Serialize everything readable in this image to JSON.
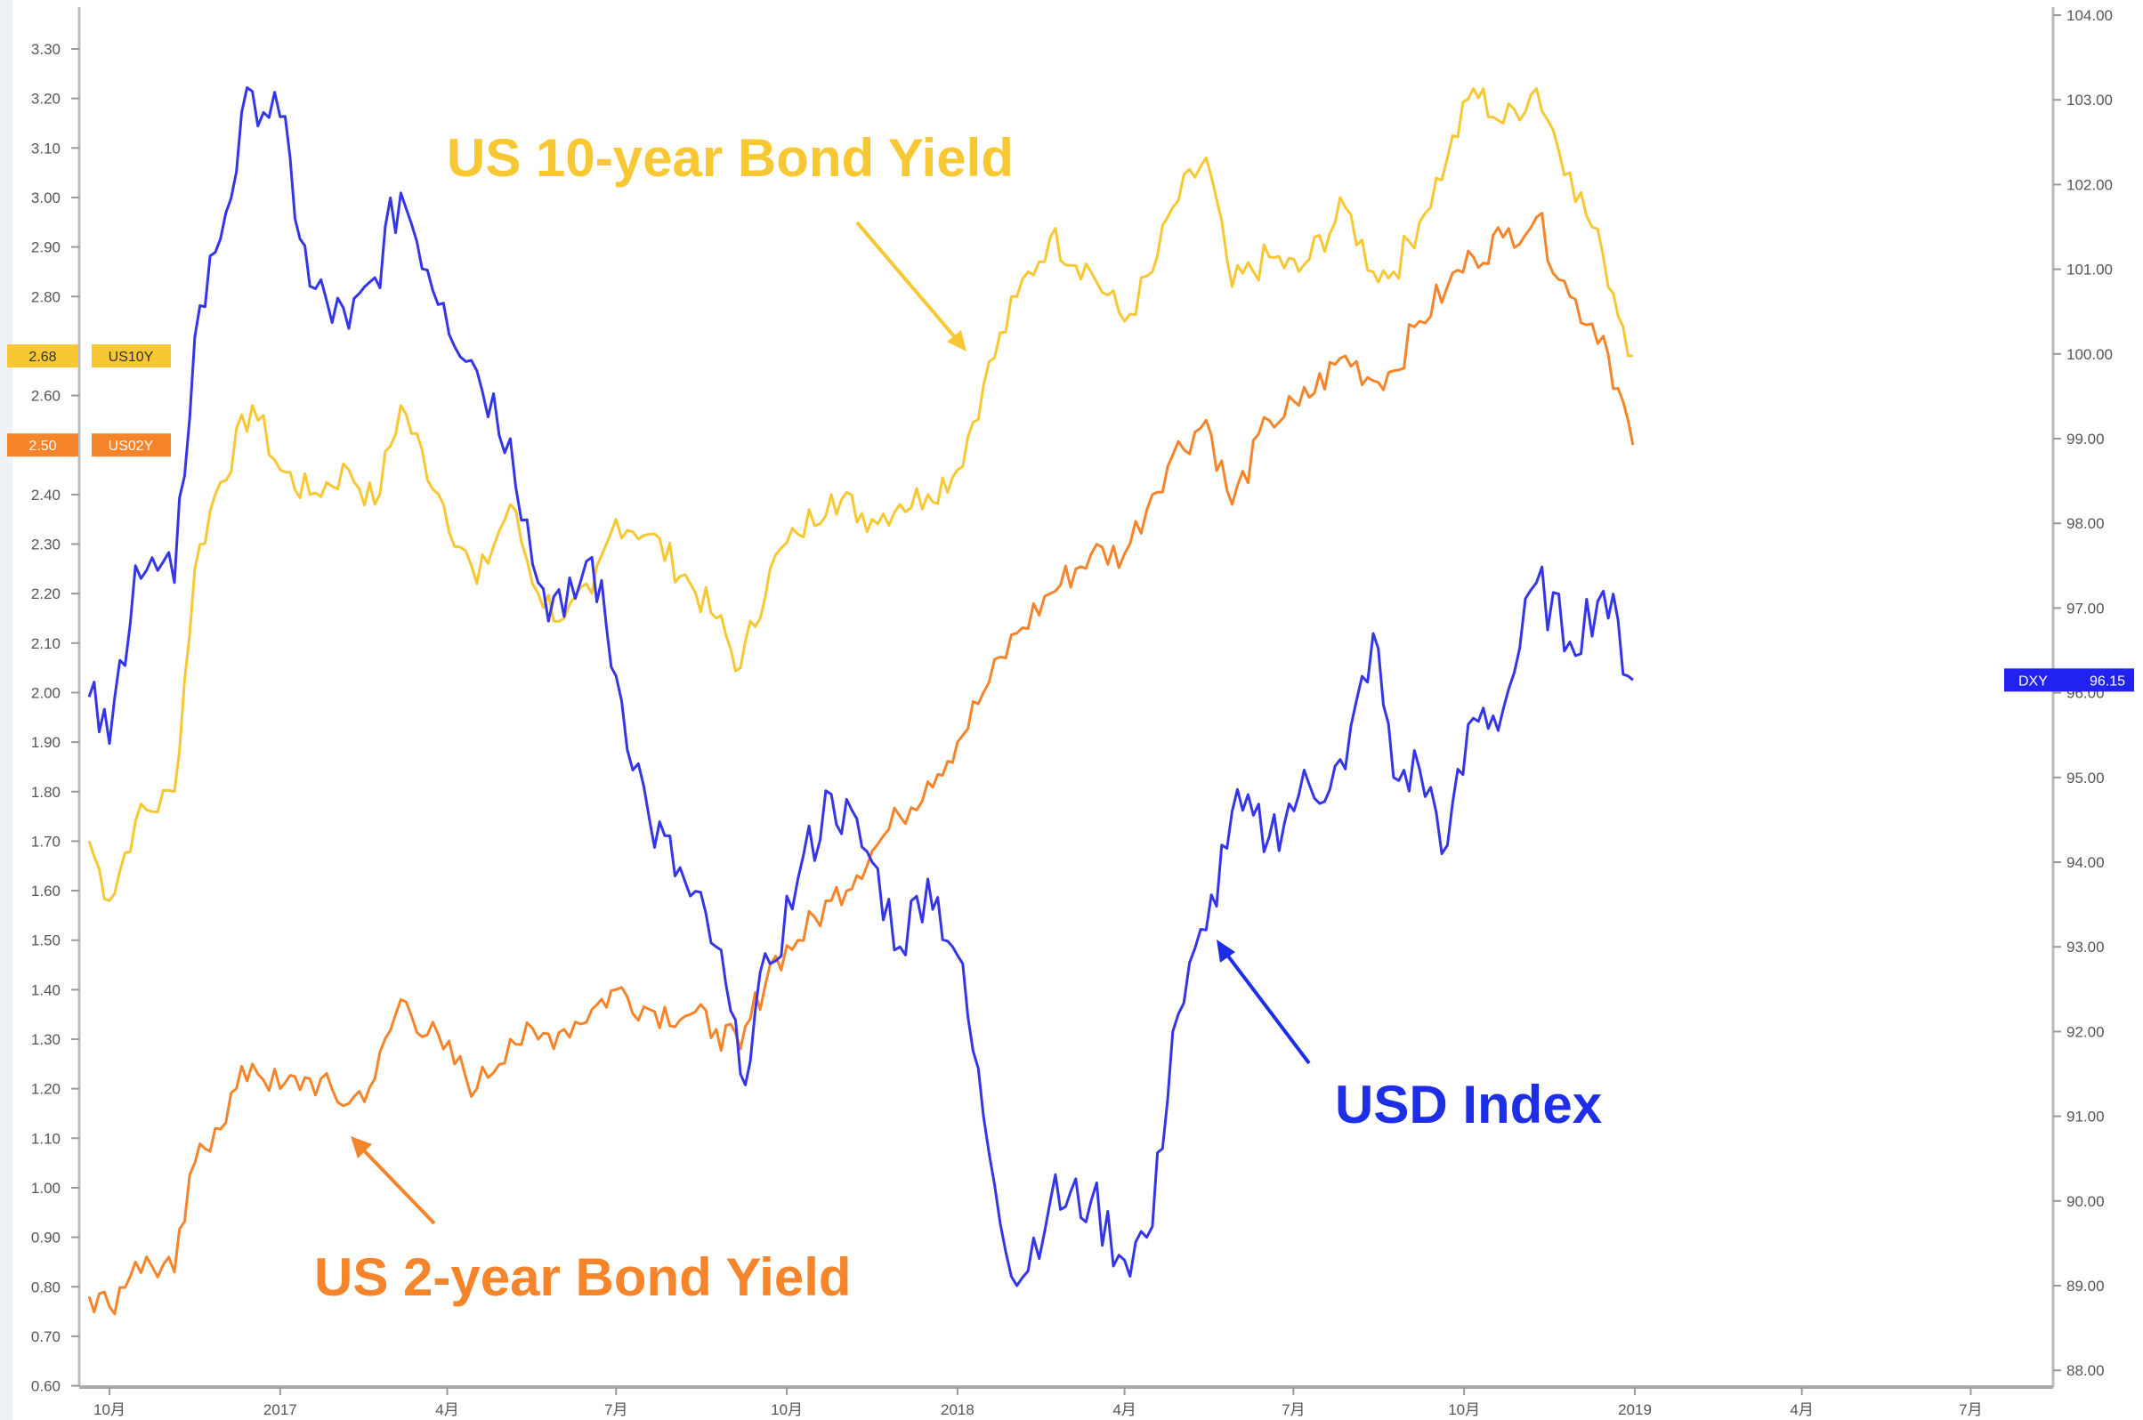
{
  "chart_data": {
    "type": "line",
    "title": "",
    "xlabel": "",
    "ylabel": "",
    "grid": false,
    "x_ticks": [
      {
        "date": "2016-10-01",
        "label": "10月"
      },
      {
        "date": "2017-01-01",
        "label": "2017"
      },
      {
        "date": "2017-04-01",
        "label": "4月"
      },
      {
        "date": "2017-07-01",
        "label": "7月"
      },
      {
        "date": "2017-10-01",
        "label": "10月"
      },
      {
        "date": "2018-01-01",
        "label": "2018"
      },
      {
        "date": "2018-04-01",
        "label": "4月"
      },
      {
        "date": "2018-07-01",
        "label": "7月"
      },
      {
        "date": "2018-10-01",
        "label": "10月"
      },
      {
        "date": "2019-01-01",
        "label": "2019"
      },
      {
        "date": "2019-04-01",
        "label": "4月"
      },
      {
        "date": "2019-07-01",
        "label": "7月"
      }
    ],
    "left_axis": {
      "ylim": [
        0.6,
        3.35
      ],
      "ticks": [
        "3.30",
        "3.20",
        "3.10",
        "3.00",
        "2.90",
        "2.80",
        "2.60",
        "2.40",
        "2.30",
        "2.20",
        "2.10",
        "2.00",
        "1.90",
        "1.80",
        "1.70",
        "1.60",
        "1.50",
        "1.40",
        "1.30",
        "1.20",
        "1.10",
        "1.00",
        "0.90",
        "0.80",
        "0.70",
        "0.60"
      ]
    },
    "right_axis": {
      "ylim": [
        87.7,
        104.1
      ],
      "ticks": [
        "104.00",
        "103.00",
        "102.00",
        "101.00",
        "100.00",
        "99.00",
        "98.00",
        "97.00",
        "96.00",
        "95.00",
        "94.00",
        "93.00",
        "92.00",
        "91.00",
        "90.00",
        "89.00",
        "88.00"
      ]
    },
    "x": [
      "2016-09-20",
      "2016-10-01",
      "2016-10-15",
      "2016-11-05",
      "2016-11-16",
      "2016-11-27",
      "2016-12-17",
      "2017-01-01",
      "2017-01-17",
      "2017-02-07",
      "2017-02-21",
      "2017-03-07",
      "2017-03-30",
      "2017-04-17",
      "2017-05-05",
      "2017-05-20",
      "2017-06-03",
      "2017-06-18",
      "2017-07-01",
      "2017-07-19",
      "2017-08-10",
      "2017-08-24",
      "2017-09-06",
      "2017-09-22",
      "2017-10-07",
      "2017-10-25",
      "2017-11-16",
      "2017-12-01",
      "2017-12-16",
      "2018-01-01",
      "2018-01-15",
      "2018-02-02",
      "2018-02-20",
      "2018-03-14",
      "2018-04-01",
      "2018-04-16",
      "2018-04-27",
      "2018-05-15",
      "2018-05-29",
      "2018-06-18",
      "2018-07-04",
      "2018-07-29",
      "2018-08-13",
      "2018-08-24",
      "2018-09-07",
      "2018-09-22",
      "2018-10-06",
      "2018-10-22",
      "2018-11-09",
      "2018-11-27",
      "2018-12-15",
      "2018-12-31"
    ],
    "series": [
      {
        "key": "us10y",
        "axis": "left",
        "color": "#F7C833",
        "last_value": "2.68",
        "tag": "US10Y",
        "values": [
          1.7,
          1.58,
          1.74,
          1.8,
          2.25,
          2.4,
          2.58,
          2.45,
          2.4,
          2.45,
          2.38,
          2.58,
          2.38,
          2.22,
          2.38,
          2.2,
          2.15,
          2.2,
          2.35,
          2.32,
          2.22,
          2.15,
          2.05,
          2.25,
          2.32,
          2.4,
          2.35,
          2.38,
          2.4,
          2.45,
          2.62,
          2.8,
          2.92,
          2.85,
          2.75,
          2.85,
          2.98,
          3.08,
          2.82,
          2.88,
          2.85,
          2.98,
          2.85,
          2.85,
          2.95,
          3.08,
          3.22,
          3.15,
          3.22,
          3.05,
          2.88,
          2.68
        ]
      },
      {
        "key": "us02y",
        "axis": "left",
        "color": "#F5842A",
        "last_value": "2.50",
        "tag": "US02Y",
        "values": [
          0.78,
          0.76,
          0.85,
          0.83,
          1.05,
          1.12,
          1.25,
          1.2,
          1.22,
          1.17,
          1.22,
          1.38,
          1.28,
          1.2,
          1.3,
          1.3,
          1.32,
          1.36,
          1.4,
          1.36,
          1.35,
          1.32,
          1.28,
          1.45,
          1.5,
          1.58,
          1.68,
          1.75,
          1.82,
          1.9,
          2.0,
          2.12,
          2.2,
          2.28,
          2.28,
          2.4,
          2.48,
          2.55,
          2.38,
          2.55,
          2.58,
          2.68,
          2.63,
          2.65,
          2.75,
          2.82,
          2.88,
          2.92,
          2.96,
          2.8,
          2.72,
          2.5
        ]
      },
      {
        "key": "dxy",
        "axis": "right",
        "color": "#3535E8",
        "last_value": "96.15",
        "tag": "DXY",
        "values": [
          95.95,
          95.4,
          97.5,
          97.3,
          100.2,
          101.2,
          103.1,
          102.8,
          100.8,
          100.3,
          100.9,
          101.9,
          100.6,
          99.8,
          99.0,
          97.3,
          96.9,
          97.6,
          96.2,
          94.5,
          93.6,
          93.0,
          91.5,
          92.8,
          93.8,
          94.8,
          94.0,
          93.0,
          93.8,
          92.9,
          91.0,
          89.0,
          90.0,
          90.0,
          89.3,
          89.7,
          92.0,
          93.2,
          94.6,
          94.3,
          94.8,
          95.1,
          96.7,
          95.0,
          95.1,
          94.2,
          95.7,
          95.8,
          97.3,
          96.6,
          97.2,
          96.15
        ]
      }
    ],
    "annotations": [
      {
        "key": "us10y",
        "text": "US 10-year Bond Yield",
        "color": "#F7C833"
      },
      {
        "key": "us02y",
        "text": "US 2-year Bond Yield",
        "color": "#F5842A"
      },
      {
        "key": "dxy",
        "text": "USD Index",
        "color": "#1E2EE6"
      }
    ]
  }
}
